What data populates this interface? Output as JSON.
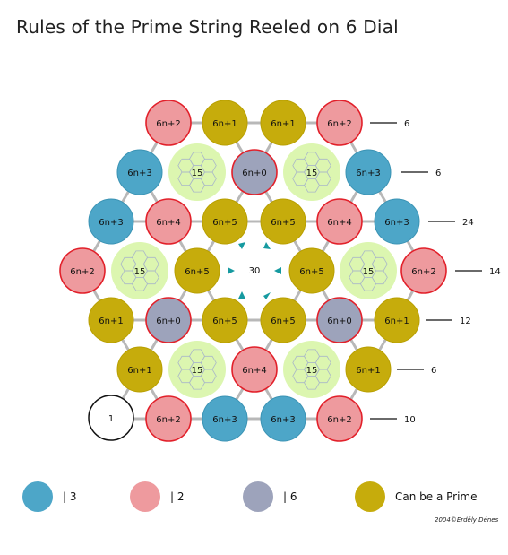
{
  "title": "Rules of the Prime String Reeled on 6 Dial",
  "colors": {
    "blue": "#4da6c8",
    "pink": "#ee9a9e",
    "gray": "#9da3bb",
    "gold": "#c6ac0c",
    "green": "#dcf6b0",
    "edge": "#b8b8b8",
    "teal": "#169aa0"
  },
  "nodes": [
    {
      "label": "6n+2",
      "color": "pink"
    },
    {
      "label": "6n+1",
      "color": "gold"
    },
    {
      "label": "6n+1",
      "color": "gold"
    },
    {
      "label": "6n+2",
      "color": "pink"
    },
    {
      "label": "6n+3",
      "color": "blue"
    },
    {
      "label": "6n+0",
      "color": "gray"
    },
    {
      "label": "6n+3",
      "color": "blue"
    },
    {
      "label": "6n+3",
      "color": "blue"
    },
    {
      "label": "6n+4",
      "color": "pink"
    },
    {
      "label": "6n+5",
      "color": "gold"
    },
    {
      "label": "6n+5",
      "color": "gold"
    },
    {
      "label": "6n+4",
      "color": "pink"
    },
    {
      "label": "6n+3",
      "color": "blue"
    },
    {
      "label": "6n+2",
      "color": "pink"
    },
    {
      "label": "6n+5",
      "color": "gold"
    },
    {
      "label": "6n+5",
      "color": "gold"
    },
    {
      "label": "6n+2",
      "color": "pink"
    },
    {
      "label": "6n+1",
      "color": "gold"
    },
    {
      "label": "6n+0",
      "color": "gray"
    },
    {
      "label": "6n+5",
      "color": "gold"
    },
    {
      "label": "6n+5",
      "color": "gold"
    },
    {
      "label": "6n+0",
      "color": "gray"
    },
    {
      "label": "6n+1",
      "color": "gold"
    },
    {
      "label": "6n+1",
      "color": "gold"
    },
    {
      "label": "6n+4",
      "color": "pink"
    },
    {
      "label": "6n+1",
      "color": "gold"
    },
    {
      "label": "6n+2",
      "color": "pink"
    },
    {
      "label": "6n+3",
      "color": "blue"
    },
    {
      "label": "6n+3",
      "color": "blue"
    },
    {
      "label": "6n+2",
      "color": "pink"
    }
  ],
  "start_node": "1",
  "center_label": "30",
  "hex_cells": [
    "15",
    "15",
    "15",
    "15",
    "15",
    "15"
  ],
  "row_counts": [
    "6",
    "6",
    "24",
    "14",
    "12",
    "6",
    "10"
  ],
  "legend": [
    {
      "color": "blue",
      "text": "| 3"
    },
    {
      "color": "pink",
      "text": "| 2"
    },
    {
      "color": "gray",
      "text": "| 6"
    },
    {
      "color": "gold",
      "text": "Can be a Prime"
    }
  ],
  "credit": "2004©Erdély Dénes"
}
